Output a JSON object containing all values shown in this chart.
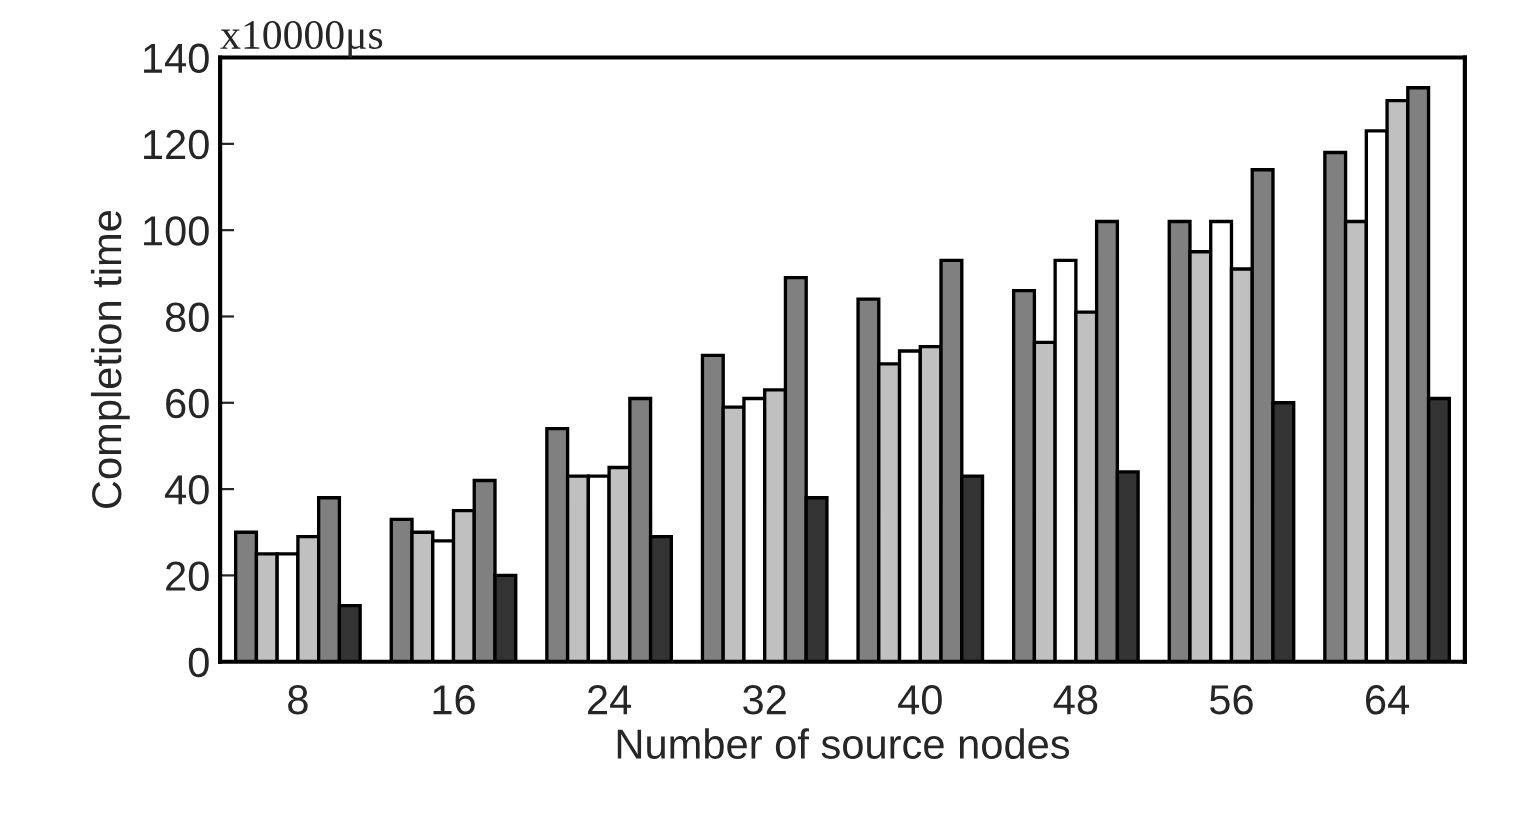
{
  "chart_data": {
    "type": "bar",
    "xlabel": "Number of source nodes",
    "ylabel": "Completion time",
    "annotations": [
      "x10000μs"
    ],
    "categories": [
      "8",
      "16",
      "24",
      "32",
      "40",
      "48",
      "56",
      "64"
    ],
    "series": [
      {
        "color": "#808080",
        "values": [
          30,
          33,
          54,
          71,
          84,
          86,
          102,
          118
        ]
      },
      {
        "color": "#c0c0c0",
        "values": [
          25,
          30,
          43,
          59,
          69,
          74,
          95,
          102
        ]
      },
      {
        "color": "#ffffff",
        "values": [
          25,
          28,
          43,
          61,
          72,
          93,
          102,
          123
        ]
      },
      {
        "color": "#c0c0c0",
        "values": [
          29,
          35,
          45,
          63,
          73,
          81,
          91,
          130
        ]
      },
      {
        "color": "#808080",
        "values": [
          38,
          42,
          61,
          89,
          93,
          102,
          114,
          133
        ]
      },
      {
        "color": "#333333",
        "values": [
          13,
          20,
          29,
          38,
          43,
          44,
          60,
          61
        ]
      }
    ],
    "ylim": [
      0,
      140
    ],
    "yticks": [
      0,
      20,
      40,
      60,
      80,
      100,
      120,
      140
    ],
    "grid": false,
    "legend": false
  }
}
